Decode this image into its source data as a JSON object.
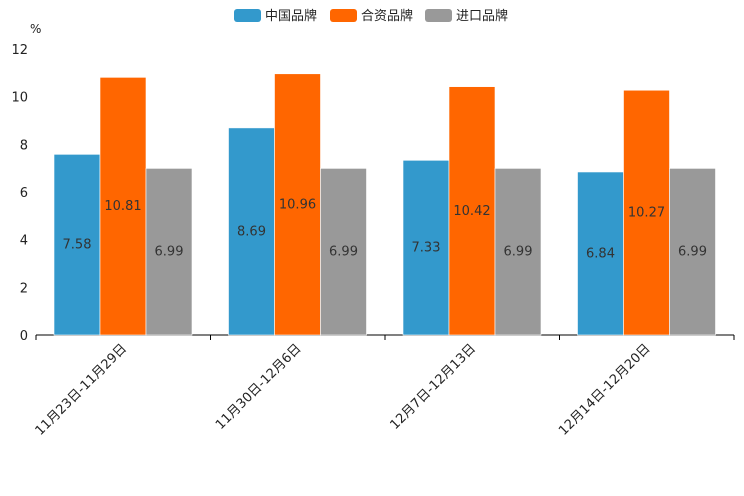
{
  "chart_data": {
    "type": "bar",
    "title": "",
    "unit": "%",
    "xlabel": "",
    "ylabel": "",
    "ylim": [
      0,
      12
    ],
    "yticks": [
      0,
      2,
      4,
      6,
      8,
      10,
      12
    ],
    "grid": false,
    "legend_position": "top-center",
    "categories": [
      "11月23日-11月29日",
      "11月30日-12月6日",
      "12月7日-12月13日",
      "12月14日-12月20日"
    ],
    "series": [
      {
        "name": "中国品牌",
        "color": "#3399cc",
        "values": [
          7.58,
          8.69,
          7.33,
          6.84
        ]
      },
      {
        "name": "合资品牌",
        "color": "#ff6600",
        "values": [
          10.81,
          10.96,
          10.42,
          10.27
        ]
      },
      {
        "name": "进口品牌",
        "color": "#999999",
        "values": [
          6.99,
          6.99,
          6.99,
          6.99
        ]
      }
    ]
  }
}
